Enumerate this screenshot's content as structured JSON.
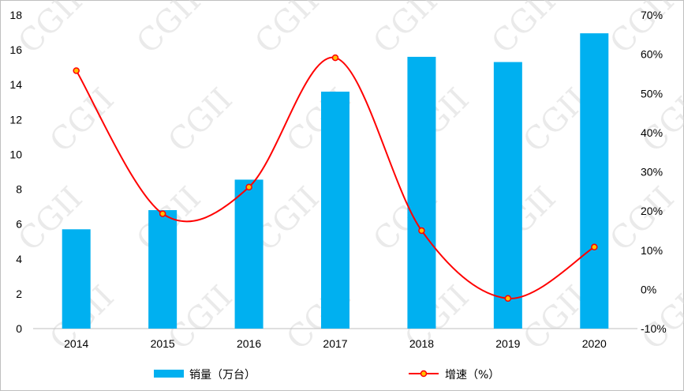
{
  "chart_data": {
    "type": "bar+line",
    "categories": [
      "2014",
      "2015",
      "2016",
      "2017",
      "2018",
      "2019",
      "2020"
    ],
    "series": [
      {
        "name": "销量（万台）",
        "type": "bar",
        "axis": "left",
        "color": "#00b0f0",
        "values": [
          5.7,
          6.8,
          8.55,
          13.6,
          15.6,
          15.3,
          16.95
        ]
      },
      {
        "name": "增速（%）",
        "type": "line",
        "axis": "right",
        "color": "#ff0000",
        "marker_fill": "#ffc000",
        "values": [
          55.8,
          19.3,
          26.1,
          59.1,
          15.0,
          -2.3,
          10.8
        ]
      }
    ],
    "y_left": {
      "min": 0,
      "max": 18,
      "step": 2,
      "ticks": [
        "0",
        "2",
        "4",
        "6",
        "8",
        "10",
        "12",
        "14",
        "16",
        "18"
      ]
    },
    "y_right": {
      "min": -10,
      "max": 70,
      "step": 10,
      "ticks": [
        "-10%",
        "0%",
        "10%",
        "20%",
        "30%",
        "40%",
        "50%",
        "60%",
        "70%"
      ]
    },
    "grid": false,
    "legend_position": "bottom",
    "watermark": "CGII"
  }
}
